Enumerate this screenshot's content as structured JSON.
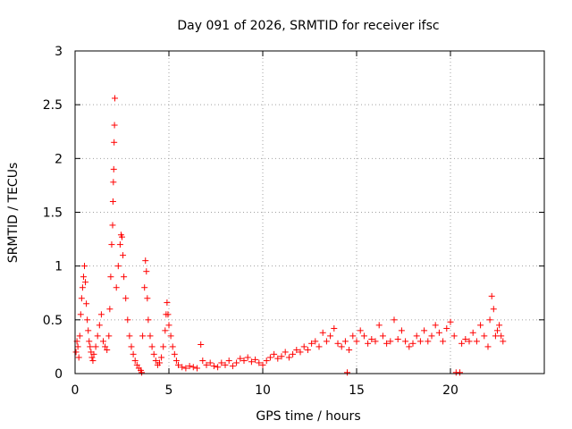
{
  "chart_data": {
    "type": "scatter",
    "title": "Day 091 of 2026, SRMTID for receiver ifsc",
    "xlabel": "GPS time / hours",
    "ylabel": "SRMTID / TECUs",
    "xlim": [
      0,
      25
    ],
    "ylim": [
      0,
      3
    ],
    "xticks": [
      0,
      5,
      10,
      15,
      20
    ],
    "yticks": [
      0,
      0.5,
      1,
      1.5,
      2,
      2.5,
      3
    ],
    "ytick_labels": [
      "0",
      "0.5",
      "1",
      "1.5",
      "2",
      "2.5",
      "3"
    ],
    "grid": true,
    "marker": "+",
    "color": "#ff0000",
    "series": [
      {
        "name": "SRMTID",
        "points": [
          [
            0.05,
            0.2
          ],
          [
            0.1,
            0.3
          ],
          [
            0.15,
            0.25
          ],
          [
            0.2,
            0.15
          ],
          [
            0.25,
            0.35
          ],
          [
            0.3,
            0.55
          ],
          [
            0.35,
            0.7
          ],
          [
            0.4,
            0.8
          ],
          [
            0.45,
            0.9
          ],
          [
            0.5,
            1.0
          ],
          [
            0.55,
            0.85
          ],
          [
            0.6,
            0.65
          ],
          [
            0.65,
            0.5
          ],
          [
            0.7,
            0.4
          ],
          [
            0.75,
            0.3
          ],
          [
            0.8,
            0.25
          ],
          [
            0.85,
            0.2
          ],
          [
            0.9,
            0.15
          ],
          [
            0.95,
            0.12
          ],
          [
            1.0,
            0.18
          ],
          [
            1.1,
            0.25
          ],
          [
            1.2,
            0.35
          ],
          [
            1.3,
            0.45
          ],
          [
            1.4,
            0.55
          ],
          [
            1.5,
            0.3
          ],
          [
            1.6,
            0.25
          ],
          [
            1.7,
            0.22
          ],
          [
            1.8,
            0.35
          ],
          [
            1.85,
            0.6
          ],
          [
            1.9,
            0.9
          ],
          [
            1.95,
            1.2
          ],
          [
            2.0,
            1.38
          ],
          [
            2.02,
            1.6
          ],
          [
            2.04,
            1.78
          ],
          [
            2.06,
            1.9
          ],
          [
            2.08,
            2.15
          ],
          [
            2.1,
            2.31
          ],
          [
            2.12,
            2.56
          ],
          [
            2.2,
            0.8
          ],
          [
            2.3,
            1.0
          ],
          [
            2.4,
            1.2
          ],
          [
            2.45,
            1.29
          ],
          [
            2.5,
            1.27
          ],
          [
            2.55,
            1.1
          ],
          [
            2.6,
            0.9
          ],
          [
            2.7,
            0.7
          ],
          [
            2.8,
            0.5
          ],
          [
            2.9,
            0.35
          ],
          [
            3.0,
            0.25
          ],
          [
            3.1,
            0.18
          ],
          [
            3.2,
            0.12
          ],
          [
            3.3,
            0.08
          ],
          [
            3.4,
            0.05
          ],
          [
            3.5,
            0.03
          ],
          [
            3.55,
            0.01
          ],
          [
            3.6,
            0.35
          ],
          [
            3.7,
            0.8
          ],
          [
            3.75,
            1.05
          ],
          [
            3.8,
            0.95
          ],
          [
            3.85,
            0.7
          ],
          [
            3.9,
            0.5
          ],
          [
            4.0,
            0.35
          ],
          [
            4.1,
            0.25
          ],
          [
            4.2,
            0.18
          ],
          [
            4.3,
            0.12
          ],
          [
            4.4,
            0.08
          ],
          [
            4.5,
            0.1
          ],
          [
            4.6,
            0.15
          ],
          [
            4.7,
            0.25
          ],
          [
            4.8,
            0.4
          ],
          [
            4.85,
            0.55
          ],
          [
            4.9,
            0.66
          ],
          [
            4.95,
            0.55
          ],
          [
            5.0,
            0.45
          ],
          [
            5.1,
            0.35
          ],
          [
            5.2,
            0.25
          ],
          [
            5.3,
            0.18
          ],
          [
            5.4,
            0.12
          ],
          [
            5.5,
            0.08
          ],
          [
            5.7,
            0.06
          ],
          [
            5.9,
            0.05
          ],
          [
            6.1,
            0.07
          ],
          [
            6.3,
            0.06
          ],
          [
            6.5,
            0.05
          ],
          [
            6.7,
            0.27
          ],
          [
            6.8,
            0.12
          ],
          [
            7.0,
            0.08
          ],
          [
            7.2,
            0.1
          ],
          [
            7.4,
            0.07
          ],
          [
            7.6,
            0.06
          ],
          [
            7.8,
            0.1
          ],
          [
            8.0,
            0.08
          ],
          [
            8.2,
            0.12
          ],
          [
            8.4,
            0.07
          ],
          [
            8.6,
            0.1
          ],
          [
            8.8,
            0.14
          ],
          [
            9.0,
            0.12
          ],
          [
            9.2,
            0.15
          ],
          [
            9.4,
            0.11
          ],
          [
            9.6,
            0.13
          ],
          [
            9.8,
            0.1
          ],
          [
            10.0,
            0.08
          ],
          [
            10.2,
            0.12
          ],
          [
            10.4,
            0.15
          ],
          [
            10.6,
            0.18
          ],
          [
            10.8,
            0.14
          ],
          [
            11.0,
            0.16
          ],
          [
            11.2,
            0.2
          ],
          [
            11.4,
            0.15
          ],
          [
            11.6,
            0.18
          ],
          [
            11.8,
            0.22
          ],
          [
            12.0,
            0.2
          ],
          [
            12.2,
            0.25
          ],
          [
            12.4,
            0.22
          ],
          [
            12.6,
            0.28
          ],
          [
            12.8,
            0.3
          ],
          [
            13.0,
            0.25
          ],
          [
            13.2,
            0.38
          ],
          [
            13.4,
            0.3
          ],
          [
            13.6,
            0.35
          ],
          [
            13.8,
            0.42
          ],
          [
            14.0,
            0.28
          ],
          [
            14.2,
            0.25
          ],
          [
            14.4,
            0.3
          ],
          [
            14.5,
            0.01
          ],
          [
            14.6,
            0.22
          ],
          [
            14.8,
            0.35
          ],
          [
            15.0,
            0.3
          ],
          [
            15.2,
            0.4
          ],
          [
            15.4,
            0.35
          ],
          [
            15.6,
            0.28
          ],
          [
            15.8,
            0.32
          ],
          [
            16.0,
            0.3
          ],
          [
            16.2,
            0.45
          ],
          [
            16.4,
            0.35
          ],
          [
            16.6,
            0.28
          ],
          [
            16.8,
            0.3
          ],
          [
            17.0,
            0.5
          ],
          [
            17.2,
            0.32
          ],
          [
            17.4,
            0.4
          ],
          [
            17.6,
            0.3
          ],
          [
            17.8,
            0.25
          ],
          [
            18.0,
            0.28
          ],
          [
            18.2,
            0.35
          ],
          [
            18.4,
            0.3
          ],
          [
            18.6,
            0.4
          ],
          [
            18.8,
            0.3
          ],
          [
            19.0,
            0.35
          ],
          [
            19.2,
            0.45
          ],
          [
            19.4,
            0.38
          ],
          [
            19.6,
            0.3
          ],
          [
            19.8,
            0.42
          ],
          [
            20.0,
            0.48
          ],
          [
            20.2,
            0.35
          ],
          [
            20.3,
            0.01
          ],
          [
            20.5,
            0.01
          ],
          [
            20.6,
            0.28
          ],
          [
            20.8,
            0.32
          ],
          [
            21.0,
            0.3
          ],
          [
            21.2,
            0.38
          ],
          [
            21.4,
            0.3
          ],
          [
            21.6,
            0.45
          ],
          [
            21.8,
            0.35
          ],
          [
            22.0,
            0.25
          ],
          [
            22.1,
            0.5
          ],
          [
            22.2,
            0.72
          ],
          [
            22.3,
            0.6
          ],
          [
            22.4,
            0.35
          ],
          [
            22.5,
            0.4
          ],
          [
            22.6,
            0.45
          ],
          [
            22.7,
            0.35
          ],
          [
            22.8,
            0.3
          ]
        ]
      }
    ]
  }
}
